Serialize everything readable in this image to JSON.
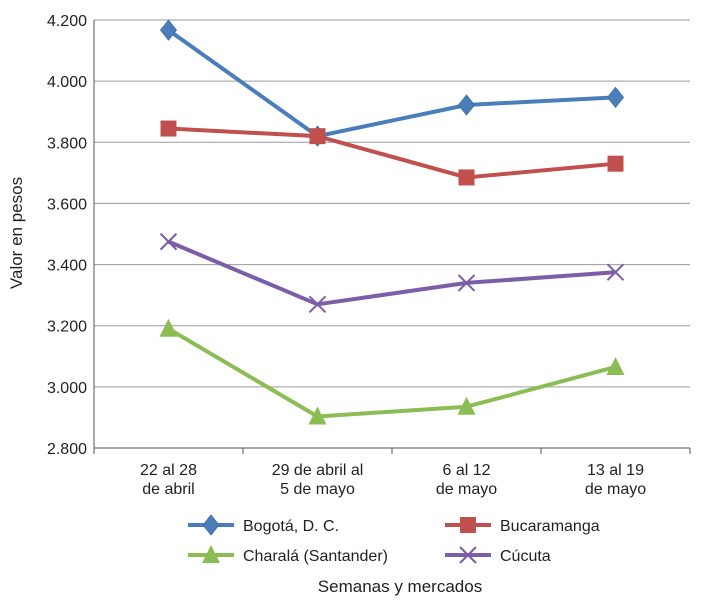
{
  "chart_data": {
    "type": "line",
    "xlabel": "Semanas y mercados",
    "ylabel": "Valor en pesos",
    "ylim": [
      2800,
      4200
    ],
    "yticks": [
      2800,
      3000,
      3200,
      3400,
      3600,
      3800,
      4000,
      4200
    ],
    "ytick_labels": [
      "2.800",
      "3.000",
      "3.200",
      "3.400",
      "3.600",
      "3.800",
      "4.000",
      "4.200"
    ],
    "categories": [
      [
        "22 al 28",
        "de abril"
      ],
      [
        "29 de abril al",
        "5 de mayo"
      ],
      [
        "6 al 12",
        "de mayo"
      ],
      [
        "13 al 19",
        "de mayo"
      ]
    ],
    "grid": true,
    "legend_position": "bottom",
    "series": [
      {
        "name": "Bogotá, D. C.",
        "values": [
          4167,
          3820,
          3922,
          3947
        ],
        "color": "#4a7ebb",
        "marker": "diamond"
      },
      {
        "name": "Bucaramanga",
        "values": [
          3845,
          3820,
          3685,
          3730
        ],
        "color": "#c0504d",
        "marker": "square"
      },
      {
        "name": "Charalá (Santander)",
        "values": [
          3190,
          2903,
          2935,
          3065
        ],
        "color": "#8cbd55",
        "marker": "triangle"
      },
      {
        "name": "Cúcuta",
        "values": [
          3475,
          3270,
          3340,
          3375
        ],
        "color": "#7b5ea7",
        "marker": "x"
      }
    ]
  }
}
